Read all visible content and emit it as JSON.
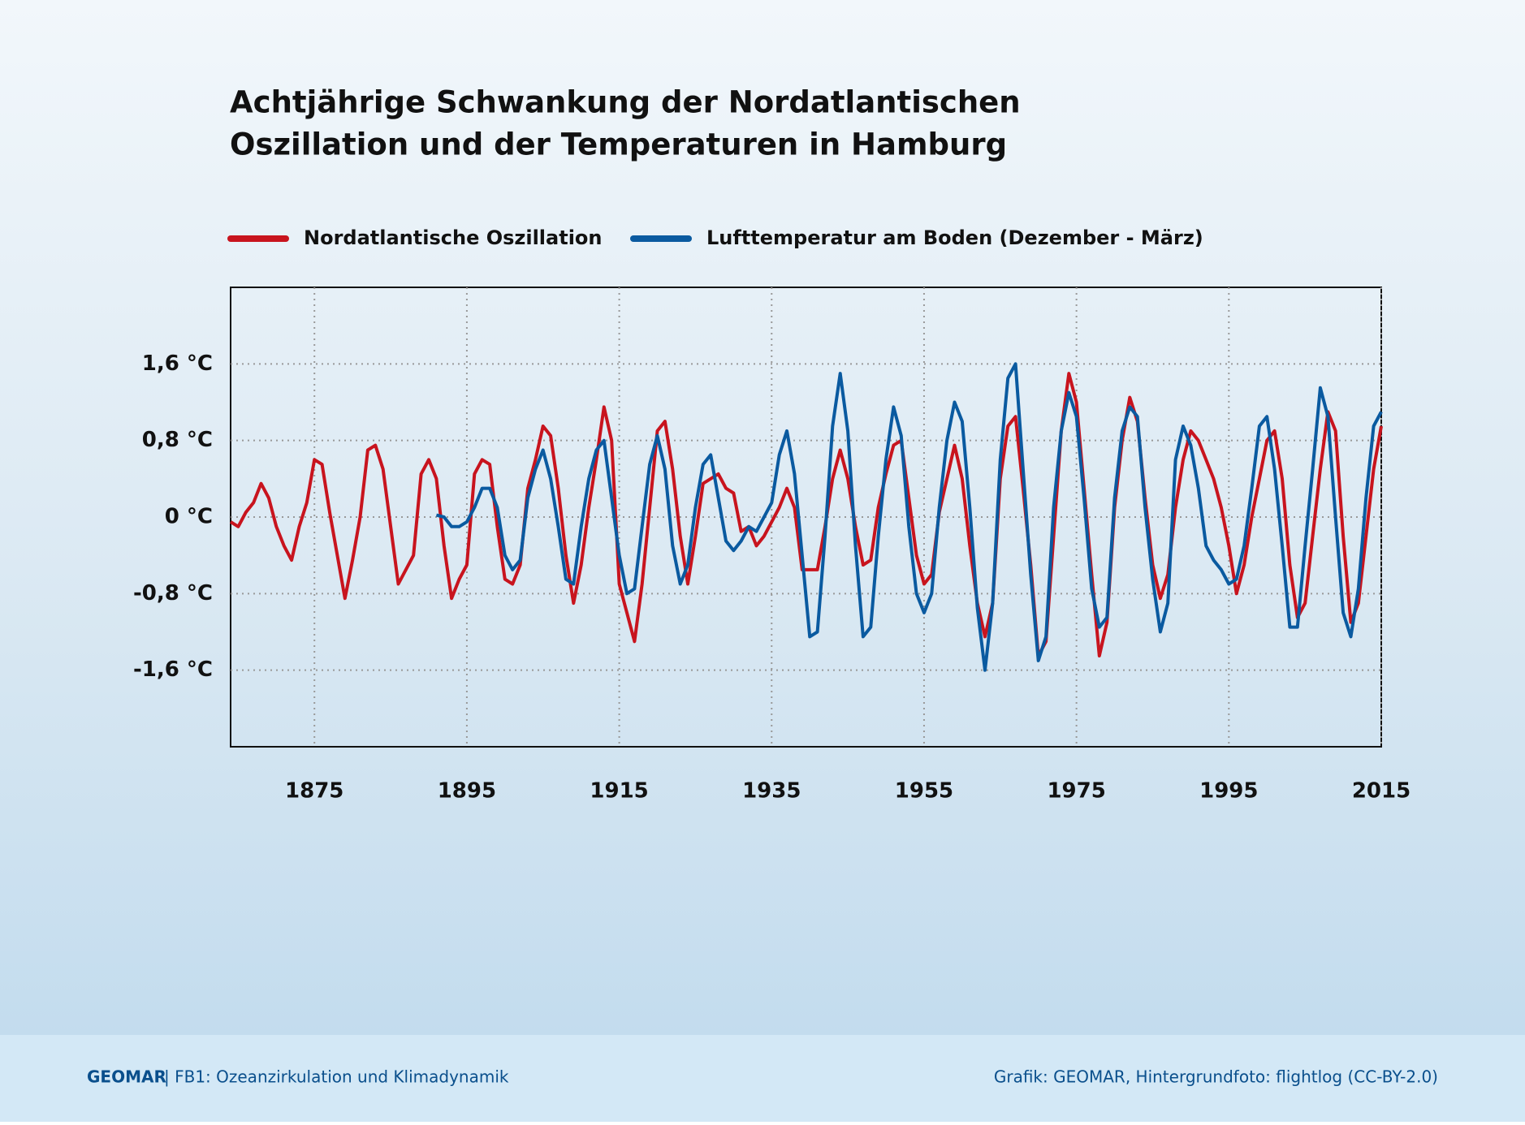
{
  "chart_data": {
    "type": "line",
    "title": [
      "Achtjährige Schwankung der Nordatlantischen",
      "Oszillation und der Temperaturen in Hamburg"
    ],
    "x": [
      1864,
      1865,
      1866,
      1867,
      1868,
      1869,
      1870,
      1871,
      1872,
      1873,
      1874,
      1875,
      1876,
      1877,
      1878,
      1879,
      1880,
      1881,
      1882,
      1883,
      1884,
      1885,
      1886,
      1887,
      1888,
      1889,
      1890,
      1891,
      1892,
      1893,
      1894,
      1895,
      1896,
      1897,
      1898,
      1899,
      1900,
      1901,
      1902,
      1903,
      1904,
      1905,
      1906,
      1907,
      1908,
      1909,
      1910,
      1911,
      1912,
      1913,
      1914,
      1915,
      1916,
      1917,
      1918,
      1919,
      1920,
      1921,
      1922,
      1923,
      1924,
      1925,
      1926,
      1927,
      1928,
      1929,
      1930,
      1931,
      1932,
      1933,
      1934,
      1935,
      1936,
      1937,
      1938,
      1939,
      1940,
      1941,
      1942,
      1943,
      1944,
      1945,
      1946,
      1947,
      1948,
      1949,
      1950,
      1951,
      1952,
      1953,
      1954,
      1955,
      1956,
      1957,
      1958,
      1959,
      1960,
      1961,
      1962,
      1963,
      1964,
      1965,
      1966,
      1967,
      1968,
      1969,
      1970,
      1971,
      1972,
      1973,
      1974,
      1975,
      1976,
      1977,
      1978,
      1979,
      1980,
      1981,
      1982,
      1983,
      1984,
      1985,
      1986,
      1987,
      1988,
      1989,
      1990,
      1991,
      1992,
      1993,
      1994,
      1995,
      1996,
      1997,
      1998,
      1999,
      2000,
      2001,
      2002,
      2003,
      2004,
      2005,
      2006,
      2007,
      2008,
      2009,
      2010,
      2011,
      2012,
      2013,
      2014,
      2015
    ],
    "series": [
      {
        "name": "Nordatlantische Oszillation",
        "color": "#c8141e",
        "values": [
          -0.05,
          -0.1,
          0.05,
          0.15,
          0.35,
          0.2,
          -0.1,
          -0.3,
          -0.45,
          -0.1,
          0.15,
          0.6,
          0.55,
          0.05,
          -0.4,
          -0.85,
          -0.45,
          0,
          0.7,
          0.75,
          0.5,
          -0.1,
          -0.7,
          -0.55,
          -0.4,
          0.45,
          0.6,
          0.4,
          -0.3,
          -0.85,
          -0.65,
          -0.5,
          0.45,
          0.6,
          0.55,
          -0.1,
          -0.65,
          -0.7,
          -0.5,
          0.3,
          0.6,
          0.95,
          0.85,
          0.3,
          -0.4,
          -0.9,
          -0.5,
          0.1,
          0.6,
          1.15,
          0.8,
          -0.7,
          -1.0,
          -1.3,
          -0.7,
          0.1,
          0.9,
          1.0,
          0.5,
          -0.2,
          -0.7,
          -0.2,
          0.35,
          0.4,
          0.45,
          0.3,
          0.25,
          -0.15,
          -0.1,
          -0.3,
          -0.2,
          -0.05,
          0.1,
          0.3,
          0.1,
          -0.55,
          -0.55,
          -0.55,
          -0.1,
          0.4,
          0.7,
          0.4,
          -0.1,
          -0.5,
          -0.45,
          0.1,
          0.45,
          0.75,
          0.8,
          0.2,
          -0.4,
          -0.7,
          -0.6,
          0.05,
          0.4,
          0.75,
          0.4,
          -0.3,
          -0.9,
          -1.25,
          -0.9,
          0.4,
          0.95,
          1.05,
          0.3,
          -0.5,
          -1.45,
          -1.3,
          -0.2,
          0.9,
          1.5,
          1.2,
          0.3,
          -0.6,
          -1.45,
          -1.1,
          0.1,
          0.8,
          1.25,
          1.0,
          0.2,
          -0.5,
          -0.85,
          -0.6,
          0.1,
          0.6,
          0.9,
          0.8,
          0.6,
          0.4,
          0.1,
          -0.3,
          -0.8,
          -0.5,
          0.0,
          0.4,
          0.8,
          0.9,
          0.4,
          -0.5,
          -1.05,
          -0.9,
          -0.2,
          0.5,
          1.1,
          0.9,
          -0.2,
          -1.1,
          -0.9,
          -0.2,
          0.5,
          0.95
        ]
      },
      {
        "name": "Lufttemperatur am Boden (Dezember - März)",
        "color": "#0a5aa0",
        "values": [
          null,
          null,
          null,
          null,
          null,
          null,
          null,
          null,
          null,
          null,
          null,
          null,
          null,
          null,
          null,
          null,
          null,
          null,
          null,
          null,
          null,
          null,
          null,
          null,
          null,
          null,
          null,
          0.02,
          0,
          -0.1,
          -0.1,
          -0.05,
          0.1,
          0.3,
          0.3,
          0.1,
          -0.4,
          -0.55,
          -0.45,
          0.2,
          0.5,
          0.7,
          0.4,
          -0.1,
          -0.65,
          -0.7,
          -0.1,
          0.4,
          0.7,
          0.8,
          0.2,
          -0.4,
          -0.8,
          -0.75,
          -0.1,
          0.55,
          0.85,
          0.5,
          -0.3,
          -0.7,
          -0.5,
          0.1,
          0.55,
          0.65,
          0.2,
          -0.25,
          -0.35,
          -0.25,
          -0.1,
          -0.15,
          0.0,
          0.15,
          0.65,
          0.9,
          0.45,
          -0.4,
          -1.25,
          -1.2,
          -0.2,
          0.95,
          1.5,
          0.9,
          -0.3,
          -1.25,
          -1.15,
          -0.2,
          0.6,
          1.15,
          0.85,
          -0.1,
          -0.8,
          -1.0,
          -0.8,
          0.1,
          0.8,
          1.2,
          1.0,
          0.1,
          -0.95,
          -1.6,
          -0.9,
          0.6,
          1.45,
          1.6,
          0.5,
          -0.6,
          -1.5,
          -1.25,
          0.1,
          0.9,
          1.3,
          1.05,
          0.2,
          -0.75,
          -1.15,
          -1.05,
          0.2,
          0.9,
          1.15,
          1.05,
          0.1,
          -0.65,
          -1.2,
          -0.9,
          0.6,
          0.95,
          0.75,
          0.3,
          -0.3,
          -0.45,
          -0.55,
          -0.7,
          -0.65,
          -0.3,
          0.3,
          0.95,
          1.05,
          0.5,
          -0.3,
          -1.15,
          -1.15,
          -0.3,
          0.5,
          1.35,
          1.05,
          0.0,
          -1.0,
          -1.25,
          -0.75,
          0.2,
          0.95,
          1.1
        ]
      }
    ],
    "xlim": [
      1864,
      2015
    ],
    "ylim": [
      -2.4,
      2.4
    ],
    "xticks": [
      1875,
      1895,
      1915,
      1935,
      1955,
      1975,
      1995,
      2015
    ],
    "yticks": [
      {
        "value": -1.6,
        "label": "-1,6 °C"
      },
      {
        "value": -0.8,
        "label": "-0,8 °C"
      },
      {
        "value": 0,
        "label": "0 °C"
      },
      {
        "value": 0.8,
        "label": "0,8 °C"
      },
      {
        "value": 1.6,
        "label": "1,6 °C"
      }
    ],
    "grid": true
  },
  "footer": {
    "brand": "GEOMAR",
    "department": "| FB1: Ozeanzirkulation und Klimadynamik",
    "credit": "Grafik: GEOMAR, Hintergrundfoto: flightlog (CC-BY-2.0)"
  }
}
